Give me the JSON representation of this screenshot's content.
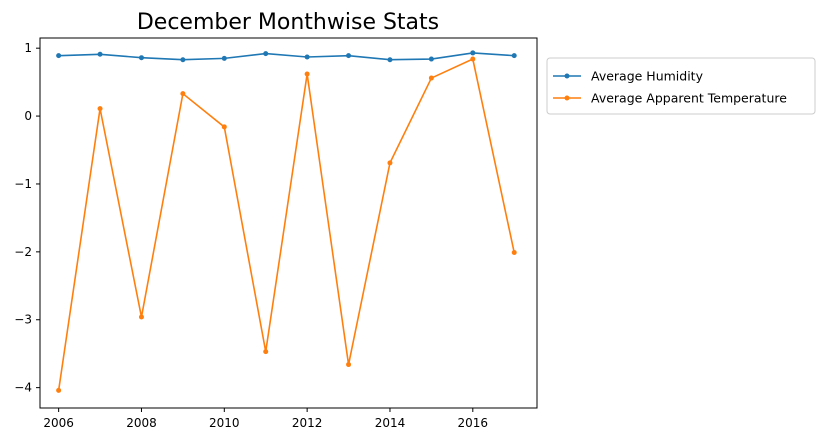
{
  "chart_data": {
    "type": "line",
    "title": "December Monthwise Stats",
    "xlabel": "",
    "ylabel": "",
    "x": [
      2006,
      2007,
      2008,
      2009,
      2010,
      2011,
      2012,
      2013,
      2014,
      2015,
      2016,
      2017
    ],
    "xlim": [
      2005.55,
      2017.55
    ],
    "ylim": [
      -4.3,
      1.15
    ],
    "xticks": [
      2006,
      2008,
      2010,
      2012,
      2014,
      2016
    ],
    "yticks": [
      -4,
      -3,
      -2,
      -1,
      0,
      1
    ],
    "ytick_labels": [
      "−4",
      "−3",
      "−2",
      "−1",
      "0",
      "1"
    ],
    "grid": false,
    "legend_position": "outside-right-top",
    "series": [
      {
        "name": "Average Humidity",
        "color": "#1f77b4",
        "marker": "dot",
        "values": [
          0.89,
          0.91,
          0.86,
          0.83,
          0.85,
          0.92,
          0.87,
          0.89,
          0.83,
          0.84,
          0.93,
          0.89
        ]
      },
      {
        "name": "Average Apparent Temperature",
        "color": "#ff7f0e",
        "marker": "dot",
        "values": [
          -4.04,
          0.11,
          -2.96,
          0.33,
          -0.16,
          -3.47,
          0.62,
          -3.66,
          -0.69,
          0.56,
          0.84,
          -2.01
        ]
      }
    ]
  }
}
